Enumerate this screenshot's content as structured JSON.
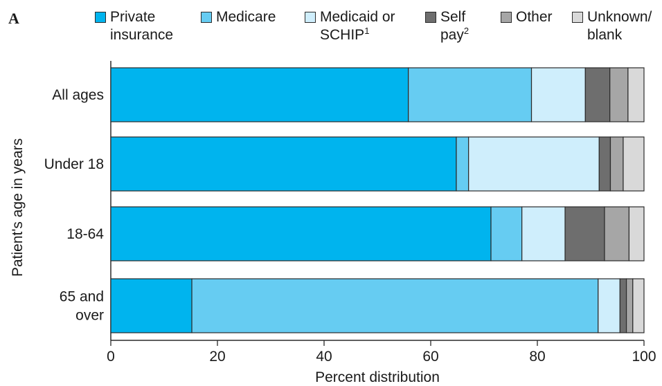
{
  "panel_label": "A",
  "colors": {
    "private": "#00b4ee",
    "medicare": "#66ccf2",
    "medicaid": "#cfeefc",
    "self_pay": "#6e6e6e",
    "other": "#a6a6a6",
    "unknown": "#d9d9d9",
    "outline": "#2a2a2a"
  },
  "legend": [
    {
      "line1": "Private",
      "line2": "insurance",
      "sup": "",
      "color": "#00b4ee"
    },
    {
      "line1": "Medicare",
      "line2": "",
      "sup": "",
      "color": "#66ccf2"
    },
    {
      "line1": "Medicaid or",
      "line2": "SCHIP",
      "sup": "1",
      "color": "#cfeefc"
    },
    {
      "line1": "Self",
      "line2": "pay",
      "sup": "2",
      "color": "#6e6e6e"
    },
    {
      "line1": "Other",
      "line2": "",
      "sup": "",
      "color": "#a6a6a6"
    },
    {
      "line1": "Unknown/",
      "line2": "blank",
      "sup": "",
      "color": "#d9d9d9"
    }
  ],
  "chart_data": {
    "type": "bar",
    "orientation": "horizontal",
    "stacked": true,
    "categories": [
      [
        "All ages"
      ],
      [
        "Under 18"
      ],
      [
        "18-64"
      ],
      [
        "65 and",
        "over"
      ]
    ],
    "series": [
      {
        "name": "Private insurance",
        "values": [
          55.8,
          64.8,
          71.3,
          15.2
        ]
      },
      {
        "name": "Medicare",
        "values": [
          23.1,
          2.3,
          5.8,
          76.2
        ]
      },
      {
        "name": "Medicaid or SCHIP",
        "values": [
          10.1,
          24.5,
          8.1,
          4.1
        ]
      },
      {
        "name": "Self pay",
        "values": [
          4.6,
          2.1,
          7.4,
          1.2
        ]
      },
      {
        "name": "Other",
        "values": [
          3.4,
          2.4,
          4.6,
          1.2
        ]
      },
      {
        "name": "Unknown/blank",
        "values": [
          3.0,
          3.9,
          2.8,
          2.1
        ]
      }
    ],
    "xlabel": "Percent distribution",
    "ylabel": "Patient's age in years",
    "xlim": [
      0,
      100
    ],
    "xticks": [
      0,
      20,
      40,
      60,
      80,
      100
    ],
    "grid": false,
    "legend_position": "top"
  }
}
